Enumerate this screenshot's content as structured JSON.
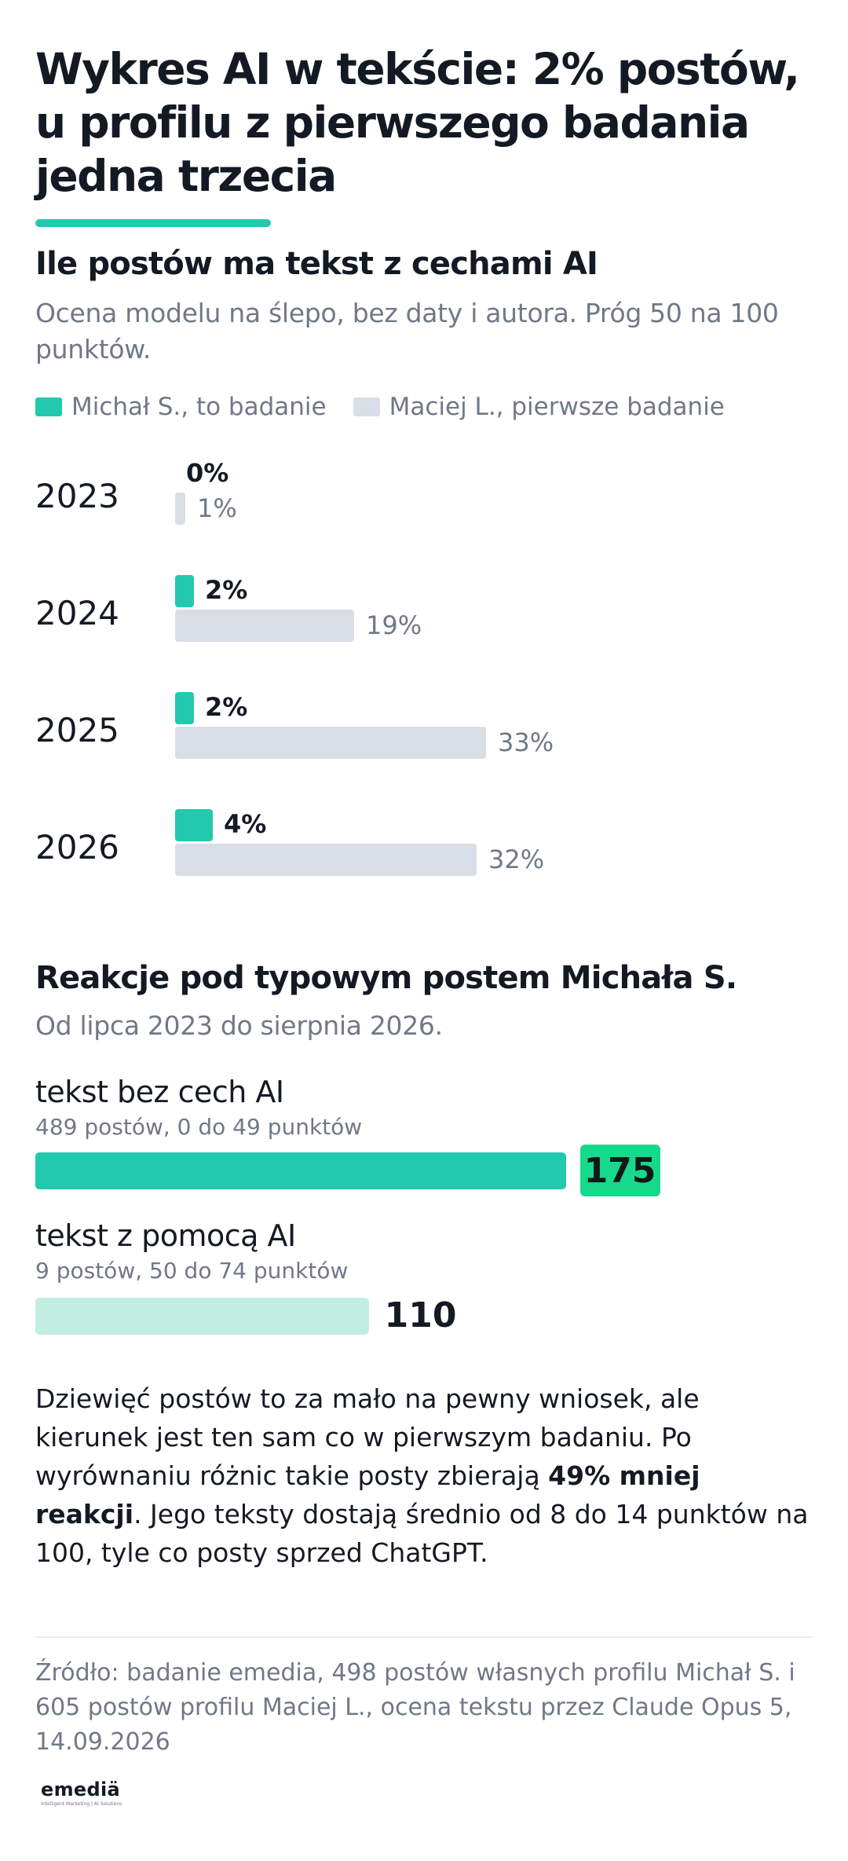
{
  "title": "Wykres AI w tekście: 2% postów, u profilu z pierwszego badania jedna trzecia",
  "chart_data": [
    {
      "type": "bar",
      "orientation": "horizontal",
      "title": "Ile postów ma tekst z cechami AI",
      "subtitle": "Ocena modelu na ślepo, bez daty i autora. Próg 50 na 100 punktów.",
      "categories": [
        "2023",
        "2024",
        "2025",
        "2026"
      ],
      "series": [
        {
          "name": "Michał S., to badanie",
          "color": "#22c9ae",
          "values": [
            0,
            2,
            2,
            4
          ],
          "labels": [
            "0%",
            "2%",
            "2%",
            "4%"
          ]
        },
        {
          "name": "Maciej L., pierwsze badanie",
          "color": "#d9dde6",
          "values": [
            1,
            19,
            33,
            32
          ],
          "labels": [
            "1%",
            "19%",
            "33%",
            "32%"
          ]
        }
      ],
      "legend_position": "top-left",
      "grid": false
    },
    {
      "type": "bar",
      "orientation": "horizontal",
      "title": "Reakcje pod typowym postem Michała S.",
      "subtitle": "Od lipca 2023 do sierpnia 2026.",
      "categories": [
        "tekst bez cech AI",
        "tekst z pomocą AI"
      ],
      "category_notes": [
        "489 postów, 0 do 49 punktów",
        "9 postów, 50 do 74 punktów"
      ],
      "values": [
        175,
        110
      ],
      "labels": [
        "175",
        "110"
      ],
      "colors": [
        "#22c9ae",
        "#c2eee1"
      ],
      "highlight_color": "#16d98c",
      "grid": false
    }
  ],
  "paragraph": {
    "before": "Dziewięć postów to za mało na pewny wniosek, ale kierunek jest ten sam co w pierwszym badaniu. Po wyrównaniu różnic takie posty zbierają ",
    "bold": "49% mniej reakcji",
    "after": ". Jego teksty dostają średnio od 8 do 14 punktów na 100, tyle co posty sprzed ChatGPT."
  },
  "source": "Źródło: badanie emedia, 498 postów własnych profilu Michał S. i 605 postów profilu Maciej L., ocena tekstu przez Claude Opus 5, 14.09.2026",
  "logo": {
    "word": "emediä",
    "tagline": "Intelligent Marketing | AI Solutions"
  }
}
